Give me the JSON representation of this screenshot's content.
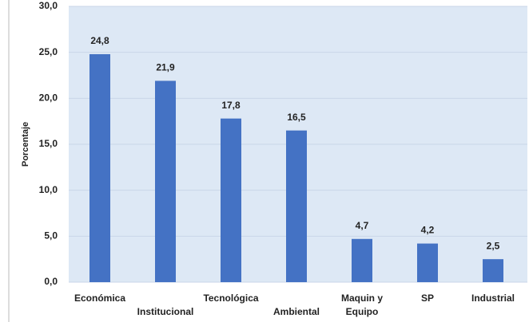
{
  "chart_data": {
    "type": "bar",
    "categories": [
      "Económica",
      "Institucional",
      "Tecnológica",
      "Ambiental",
      "Maquin y Equipo",
      "SP",
      "Industrial"
    ],
    "values": [
      24.8,
      21.9,
      17.8,
      16.5,
      4.7,
      4.2,
      2.5
    ],
    "value_labels": [
      "24,8",
      "21,9",
      "17,8",
      "16,5",
      "4,7",
      "4,2",
      "2,5"
    ],
    "color": "#4472c4",
    "y_label": "Porcentaje",
    "ylim": [
      0,
      30
    ],
    "yticks": [
      {
        "value": 0,
        "label": "0,0"
      },
      {
        "value": 5,
        "label": "5,0"
      },
      {
        "value": 10,
        "label": "10,0"
      },
      {
        "value": 15,
        "label": "15,0"
      },
      {
        "value": 20,
        "label": "20,0"
      },
      {
        "value": 25,
        "label": "25,0"
      },
      {
        "value": 30,
        "label": "30,0"
      }
    ],
    "grid": true
  }
}
